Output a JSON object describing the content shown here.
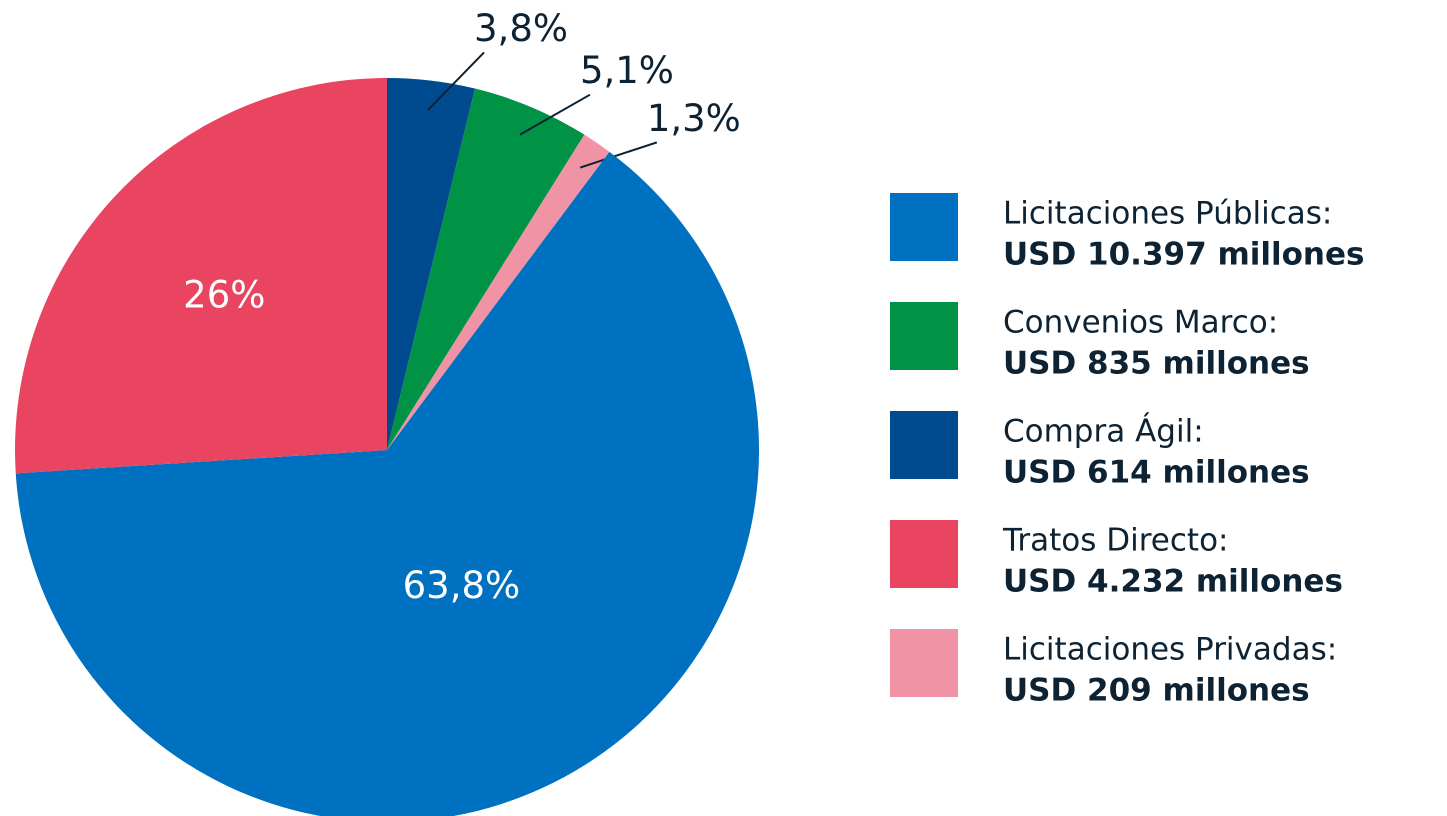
{
  "chart_data": {
    "type": "pie",
    "categories": [
      "Compra Ágil:",
      "Convenios Marco:",
      "Licitaciones Privadas:",
      "Licitaciones Públicas:",
      "Tratos Directo:"
    ],
    "values": [
      3.8,
      5.1,
      1.3,
      63.8,
      26
    ],
    "value_labels": [
      "3,8%",
      "5,1%",
      "1,3%",
      "63,8%",
      "26%"
    ],
    "amounts": [
      "USD 614 millones",
      "USD 835 millones",
      "USD 209 millones",
      "USD 10.397 millones",
      "USD 4.232 millones"
    ],
    "colors": [
      "#004a8f",
      "#009245",
      "#f093a4",
      "#0070c0",
      "#e94560"
    ]
  }
}
